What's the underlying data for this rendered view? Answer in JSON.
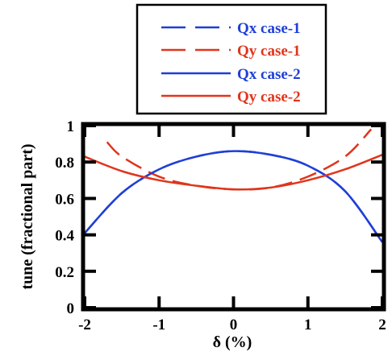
{
  "chart_data": {
    "type": "line",
    "xlabel": "δ (%)",
    "ylabel": "tune (fractional part)",
    "xlim": [
      -2,
      2
    ],
    "ylim": [
      0,
      1
    ],
    "x_ticks": [
      "-2",
      "-1",
      "0",
      "1",
      "2"
    ],
    "y_ticks": [
      "0",
      "0.2",
      "0.4",
      "0.6",
      "0.8",
      "1"
    ],
    "x_tick_values": [
      -2,
      -1,
      0,
      1,
      2
    ],
    "y_tick_values": [
      0,
      0.2,
      0.4,
      0.6,
      0.8,
      1
    ],
    "grid": false,
    "legend_position": "top",
    "series": [
      {
        "name": "Qx case-1",
        "color": "#1f3fd6",
        "style": "dashed",
        "x": [
          -2,
          -1.5,
          -1,
          -0.5,
          0,
          0.5,
          1,
          1.5,
          2
        ],
        "y": [
          0.41,
          0.63,
          0.76,
          0.83,
          0.86,
          0.84,
          0.78,
          0.64,
          0.36
        ]
      },
      {
        "name": "Qy case-1",
        "color": "#e0351b",
        "style": "dashed",
        "x": [
          -1.7,
          -1.5,
          -1,
          -0.5,
          0,
          0.5,
          1,
          1.5,
          1.85
        ],
        "y": [
          0.91,
          0.83,
          0.72,
          0.67,
          0.65,
          0.66,
          0.72,
          0.83,
          0.98
        ]
      },
      {
        "name": "Qx case-2",
        "color": "#1f3fd6",
        "style": "solid",
        "x": [
          -2,
          -1.5,
          -1,
          -0.5,
          0,
          0.5,
          1,
          1.5,
          2
        ],
        "y": [
          0.41,
          0.63,
          0.76,
          0.83,
          0.86,
          0.84,
          0.78,
          0.64,
          0.36
        ]
      },
      {
        "name": "Qy case-2",
        "color": "#e0351b",
        "style": "solid",
        "x": [
          -2,
          -1.5,
          -1,
          -0.5,
          0,
          0.5,
          1,
          1.5,
          2
        ],
        "y": [
          0.83,
          0.75,
          0.7,
          0.67,
          0.65,
          0.66,
          0.7,
          0.76,
          0.84
        ]
      }
    ]
  }
}
